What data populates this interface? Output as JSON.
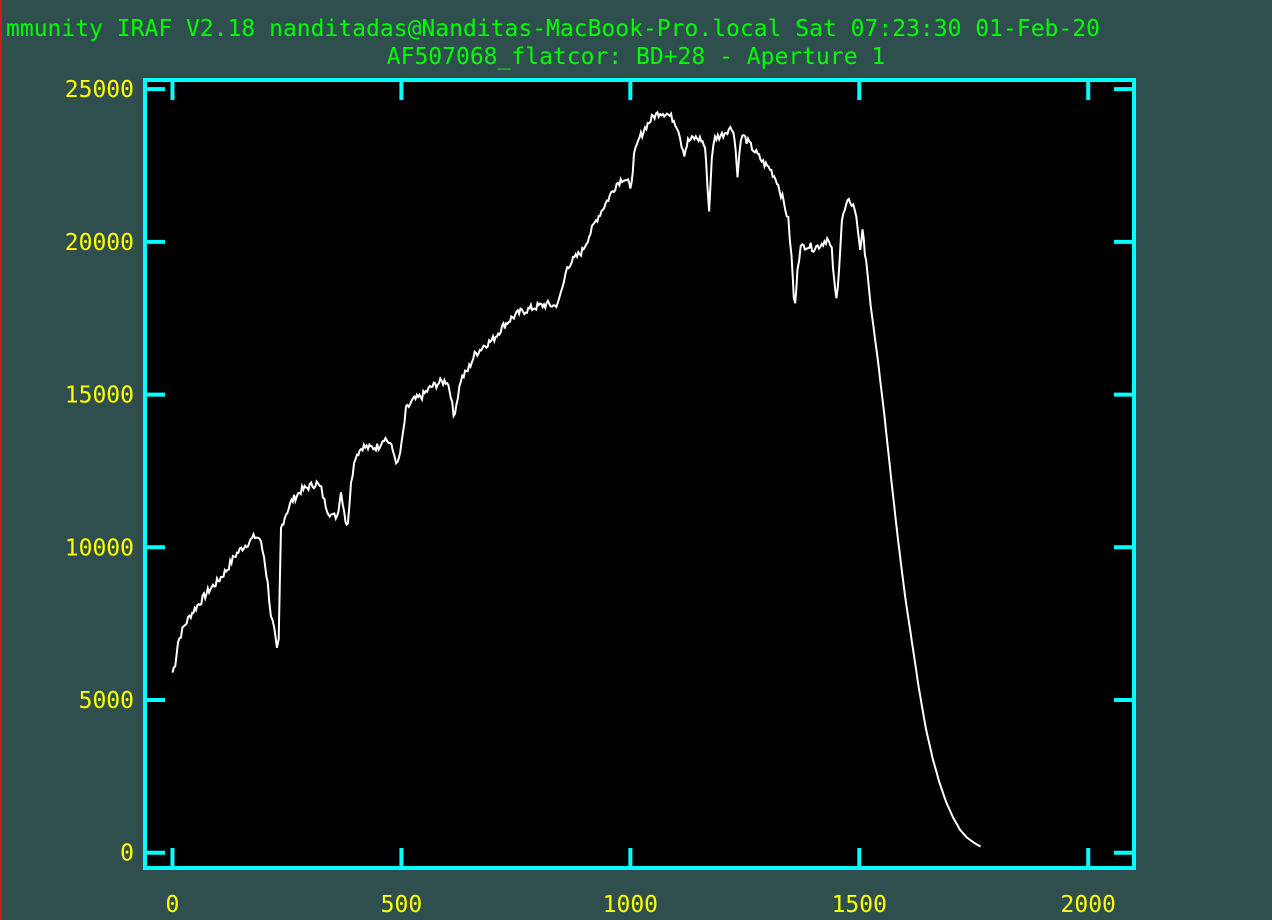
{
  "window": {
    "title_line": "mmunity IRAF V2.18 nanditadas@Nanditas-MacBook-Pro.local Sat 07:23:30 01-Feb-20",
    "subtitle_line": "AF507068_flatcor: BD+28 - Aperture 1"
  },
  "colors": {
    "background": "#2f4f4f",
    "header_text": "#00ff00",
    "plot_area": "#000000",
    "frame": "#00ffff",
    "tick_labels": "#ffff00",
    "spectrum": "#ffffff"
  },
  "chart_data": {
    "type": "line",
    "title": "AF507068_flatcor: BD+28 - Aperture 1",
    "xlabel": "",
    "ylabel": "",
    "xlim": [
      -60,
      2100
    ],
    "ylim": [
      -500,
      25300
    ],
    "x_ticks": [
      0,
      500,
      1000,
      1500,
      2000
    ],
    "y_ticks": [
      0,
      5000,
      10000,
      15000,
      20000,
      25000
    ],
    "x_tick_labels": [
      "0",
      "500",
      "1000",
      "1500",
      "2000"
    ],
    "y_tick_labels": [
      "0",
      "5000",
      "10000",
      "15000",
      "20000",
      "25000"
    ],
    "grid": false,
    "series": [
      {
        "points": [
          [
            0,
            5900
          ],
          [
            6,
            6200
          ],
          [
            12,
            6900
          ],
          [
            25,
            7400
          ],
          [
            40,
            7800
          ],
          [
            60,
            8200
          ],
          [
            80,
            8600
          ],
          [
            100,
            8900
          ],
          [
            120,
            9300
          ],
          [
            135,
            9700
          ],
          [
            150,
            9950
          ],
          [
            165,
            10150
          ],
          [
            180,
            10350
          ],
          [
            190,
            10300
          ],
          [
            200,
            9700
          ],
          [
            208,
            8800
          ],
          [
            215,
            7800
          ],
          [
            222,
            7300
          ],
          [
            228,
            6600
          ],
          [
            232,
            6900
          ],
          [
            237,
            10600
          ],
          [
            245,
            11000
          ],
          [
            260,
            11500
          ],
          [
            280,
            11850
          ],
          [
            300,
            12000
          ],
          [
            315,
            12100
          ],
          [
            325,
            11900
          ],
          [
            332,
            11500
          ],
          [
            340,
            11200
          ],
          [
            350,
            11000
          ],
          [
            360,
            11050
          ],
          [
            368,
            11800
          ],
          [
            372,
            11500
          ],
          [
            378,
            10900
          ],
          [
            383,
            10700
          ],
          [
            390,
            12200
          ],
          [
            400,
            13000
          ],
          [
            415,
            13300
          ],
          [
            430,
            13250
          ],
          [
            450,
            13300
          ],
          [
            462,
            13600
          ],
          [
            475,
            13400
          ],
          [
            485,
            13000
          ],
          [
            492,
            12700
          ],
          [
            500,
            13300
          ],
          [
            510,
            14500
          ],
          [
            525,
            14800
          ],
          [
            545,
            14950
          ],
          [
            565,
            15250
          ],
          [
            585,
            15400
          ],
          [
            600,
            15450
          ],
          [
            608,
            15000
          ],
          [
            614,
            14300
          ],
          [
            620,
            14700
          ],
          [
            630,
            15500
          ],
          [
            645,
            15800
          ],
          [
            660,
            16300
          ],
          [
            680,
            16600
          ],
          [
            700,
            16800
          ],
          [
            720,
            17200
          ],
          [
            740,
            17500
          ],
          [
            760,
            17700
          ],
          [
            780,
            17800
          ],
          [
            800,
            17900
          ],
          [
            820,
            17950
          ],
          [
            835,
            17900
          ],
          [
            845,
            18100
          ],
          [
            855,
            18700
          ],
          [
            862,
            19200
          ],
          [
            875,
            19400
          ],
          [
            895,
            19700
          ],
          [
            910,
            20200
          ],
          [
            925,
            20700
          ],
          [
            940,
            21100
          ],
          [
            955,
            21500
          ],
          [
            970,
            21900
          ],
          [
            985,
            22100
          ],
          [
            995,
            22000
          ],
          [
            1000,
            21650
          ],
          [
            1008,
            22800
          ],
          [
            1020,
            23400
          ],
          [
            1035,
            23800
          ],
          [
            1050,
            24100
          ],
          [
            1065,
            24250
          ],
          [
            1080,
            24200
          ],
          [
            1095,
            24000
          ],
          [
            1105,
            23700
          ],
          [
            1112,
            23200
          ],
          [
            1118,
            22900
          ],
          [
            1126,
            23300
          ],
          [
            1140,
            23400
          ],
          [
            1155,
            23350
          ],
          [
            1163,
            23100
          ],
          [
            1168,
            22000
          ],
          [
            1172,
            21000
          ],
          [
            1178,
            22800
          ],
          [
            1185,
            23400
          ],
          [
            1200,
            23500
          ],
          [
            1215,
            23700
          ],
          [
            1225,
            23700
          ],
          [
            1230,
            23000
          ],
          [
            1234,
            22100
          ],
          [
            1238,
            23000
          ],
          [
            1245,
            23500
          ],
          [
            1260,
            23200
          ],
          [
            1275,
            22900
          ],
          [
            1290,
            22600
          ],
          [
            1305,
            22400
          ],
          [
            1320,
            22000
          ],
          [
            1335,
            21300
          ],
          [
            1345,
            20700
          ],
          [
            1352,
            19500
          ],
          [
            1357,
            18200
          ],
          [
            1360,
            17900
          ],
          [
            1365,
            19200
          ],
          [
            1372,
            19800
          ],
          [
            1385,
            19900
          ],
          [
            1400,
            19800
          ],
          [
            1415,
            19900
          ],
          [
            1430,
            20100
          ],
          [
            1440,
            19700
          ],
          [
            1445,
            18700
          ],
          [
            1450,
            18100
          ],
          [
            1456,
            19200
          ],
          [
            1462,
            20700
          ],
          [
            1472,
            21200
          ],
          [
            1480,
            21350
          ],
          [
            1490,
            21100
          ],
          [
            1497,
            20400
          ],
          [
            1502,
            19800
          ],
          [
            1507,
            20300
          ],
          [
            1515,
            19400
          ],
          [
            1525,
            17900
          ],
          [
            1540,
            16200
          ],
          [
            1555,
            14300
          ],
          [
            1570,
            12200
          ],
          [
            1585,
            10200
          ],
          [
            1600,
            8400
          ],
          [
            1615,
            6900
          ],
          [
            1630,
            5400
          ],
          [
            1645,
            4100
          ],
          [
            1660,
            3100
          ],
          [
            1675,
            2300
          ],
          [
            1690,
            1650
          ],
          [
            1705,
            1150
          ],
          [
            1720,
            750
          ],
          [
            1735,
            500
          ],
          [
            1750,
            330
          ],
          [
            1765,
            200
          ]
        ]
      }
    ]
  }
}
